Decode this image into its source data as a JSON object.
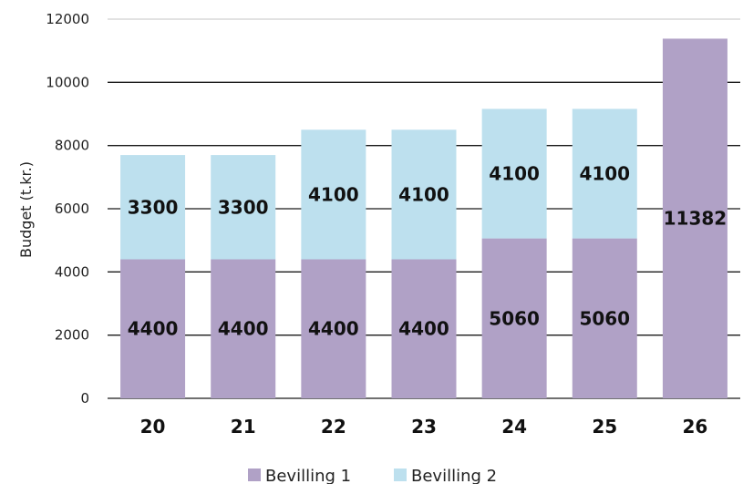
{
  "chart_data": {
    "type": "bar",
    "stacked": true,
    "categories": [
      "20",
      "21",
      "22",
      "23",
      "24",
      "25",
      "26"
    ],
    "series": [
      {
        "name": "Bevilling 1",
        "color": "#b0a1c6",
        "values": [
          4400,
          4400,
          4400,
          4400,
          5060,
          5060,
          11382
        ]
      },
      {
        "name": "Bevilling 2",
        "color": "#bde0ee",
        "values": [
          3300,
          3300,
          4100,
          4100,
          4100,
          4100,
          0
        ]
      }
    ],
    "data_labels": [
      [
        "4400",
        "4400",
        "4400",
        "4400",
        "5060",
        "5060",
        "11382"
      ],
      [
        "3300",
        "3300",
        "4100",
        "4100",
        "4100",
        "4100",
        ""
      ]
    ],
    "title": "",
    "xlabel": "",
    "ylabel": "Budget (t.kr.)",
    "ylim": [
      0,
      12000
    ],
    "yticks": [
      "0",
      "2000",
      "4000",
      "6000",
      "8000",
      "10000",
      "12000"
    ],
    "grid": true,
    "legend": "bottom"
  }
}
